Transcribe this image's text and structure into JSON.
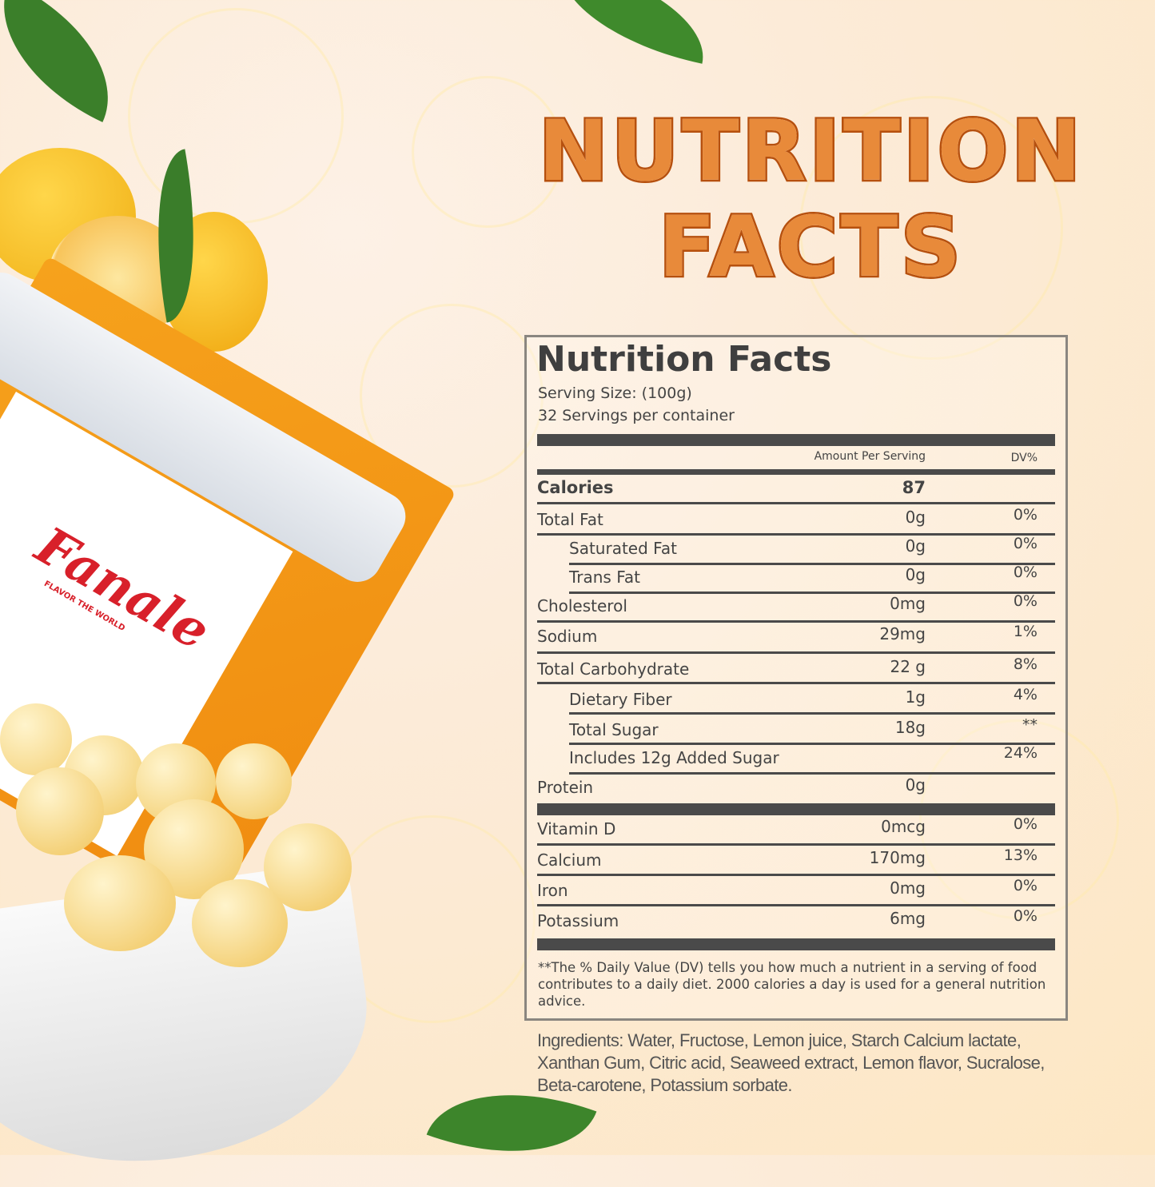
{
  "headline": {
    "line1": "NUTRITION",
    "line2": "FACTS"
  },
  "brand": {
    "logo": "Fanale",
    "tagline": "FLAVOR THE WORLD"
  },
  "label": {
    "title": "Nutrition Facts",
    "serving_size": "Serving Size:  (100g)",
    "servings": "32 Servings per container",
    "col_amount": "Amount Per Serving",
    "col_dv": "DV%",
    "calories": {
      "name": "Calories",
      "amount": "87"
    },
    "rows": [
      {
        "name": "Total Fat",
        "amount": "0g",
        "dv": "0%"
      },
      {
        "name": "Saturated Fat",
        "amount": "0g",
        "dv": "0%"
      },
      {
        "name": "Trans Fat",
        "amount": "0g",
        "dv": "0%"
      },
      {
        "name": "Cholesterol",
        "amount": "0mg",
        "dv": "0%"
      },
      {
        "name": "Sodium",
        "amount": "29mg",
        "dv": "1%"
      },
      {
        "name": "Total Carbohydrate",
        "amount": "22 g",
        "dv": "8%"
      },
      {
        "name": "Dietary Fiber",
        "amount": "1g",
        "dv": "4%"
      },
      {
        "name": "Total Sugar",
        "amount": "18g",
        "dv": "**"
      },
      {
        "name": "Includes 12g Added Sugar",
        "amount": "",
        "dv": "24%"
      },
      {
        "name": "Protein",
        "amount": "0g",
        "dv": ""
      },
      {
        "name": "Vitamin D",
        "amount": "0mcg",
        "dv": "0%"
      },
      {
        "name": "Calcium",
        "amount": "170mg",
        "dv": "13%"
      },
      {
        "name": "Iron",
        "amount": "0mg",
        "dv": "0%"
      },
      {
        "name": "Potassium",
        "amount": "6mg",
        "dv": "0%"
      }
    ],
    "footnote": "**The % Daily Value (DV) tells you how much a nutrient in a serving of food contributes to a daily diet. 2000 calories a  day is used for a general nutrition advice."
  },
  "ingredients": "Ingredients: Water, Fructose, Lemon juice, Starch Calcium lactate, Xanthan Gum, Citric acid, Seaweed extract, Lemon flavor, Sucralose, Beta-carotene, Potassium sorbate.",
  "colors": {
    "headline": "#c25a12",
    "label_text": "#444444",
    "logo": "#d8202a"
  }
}
